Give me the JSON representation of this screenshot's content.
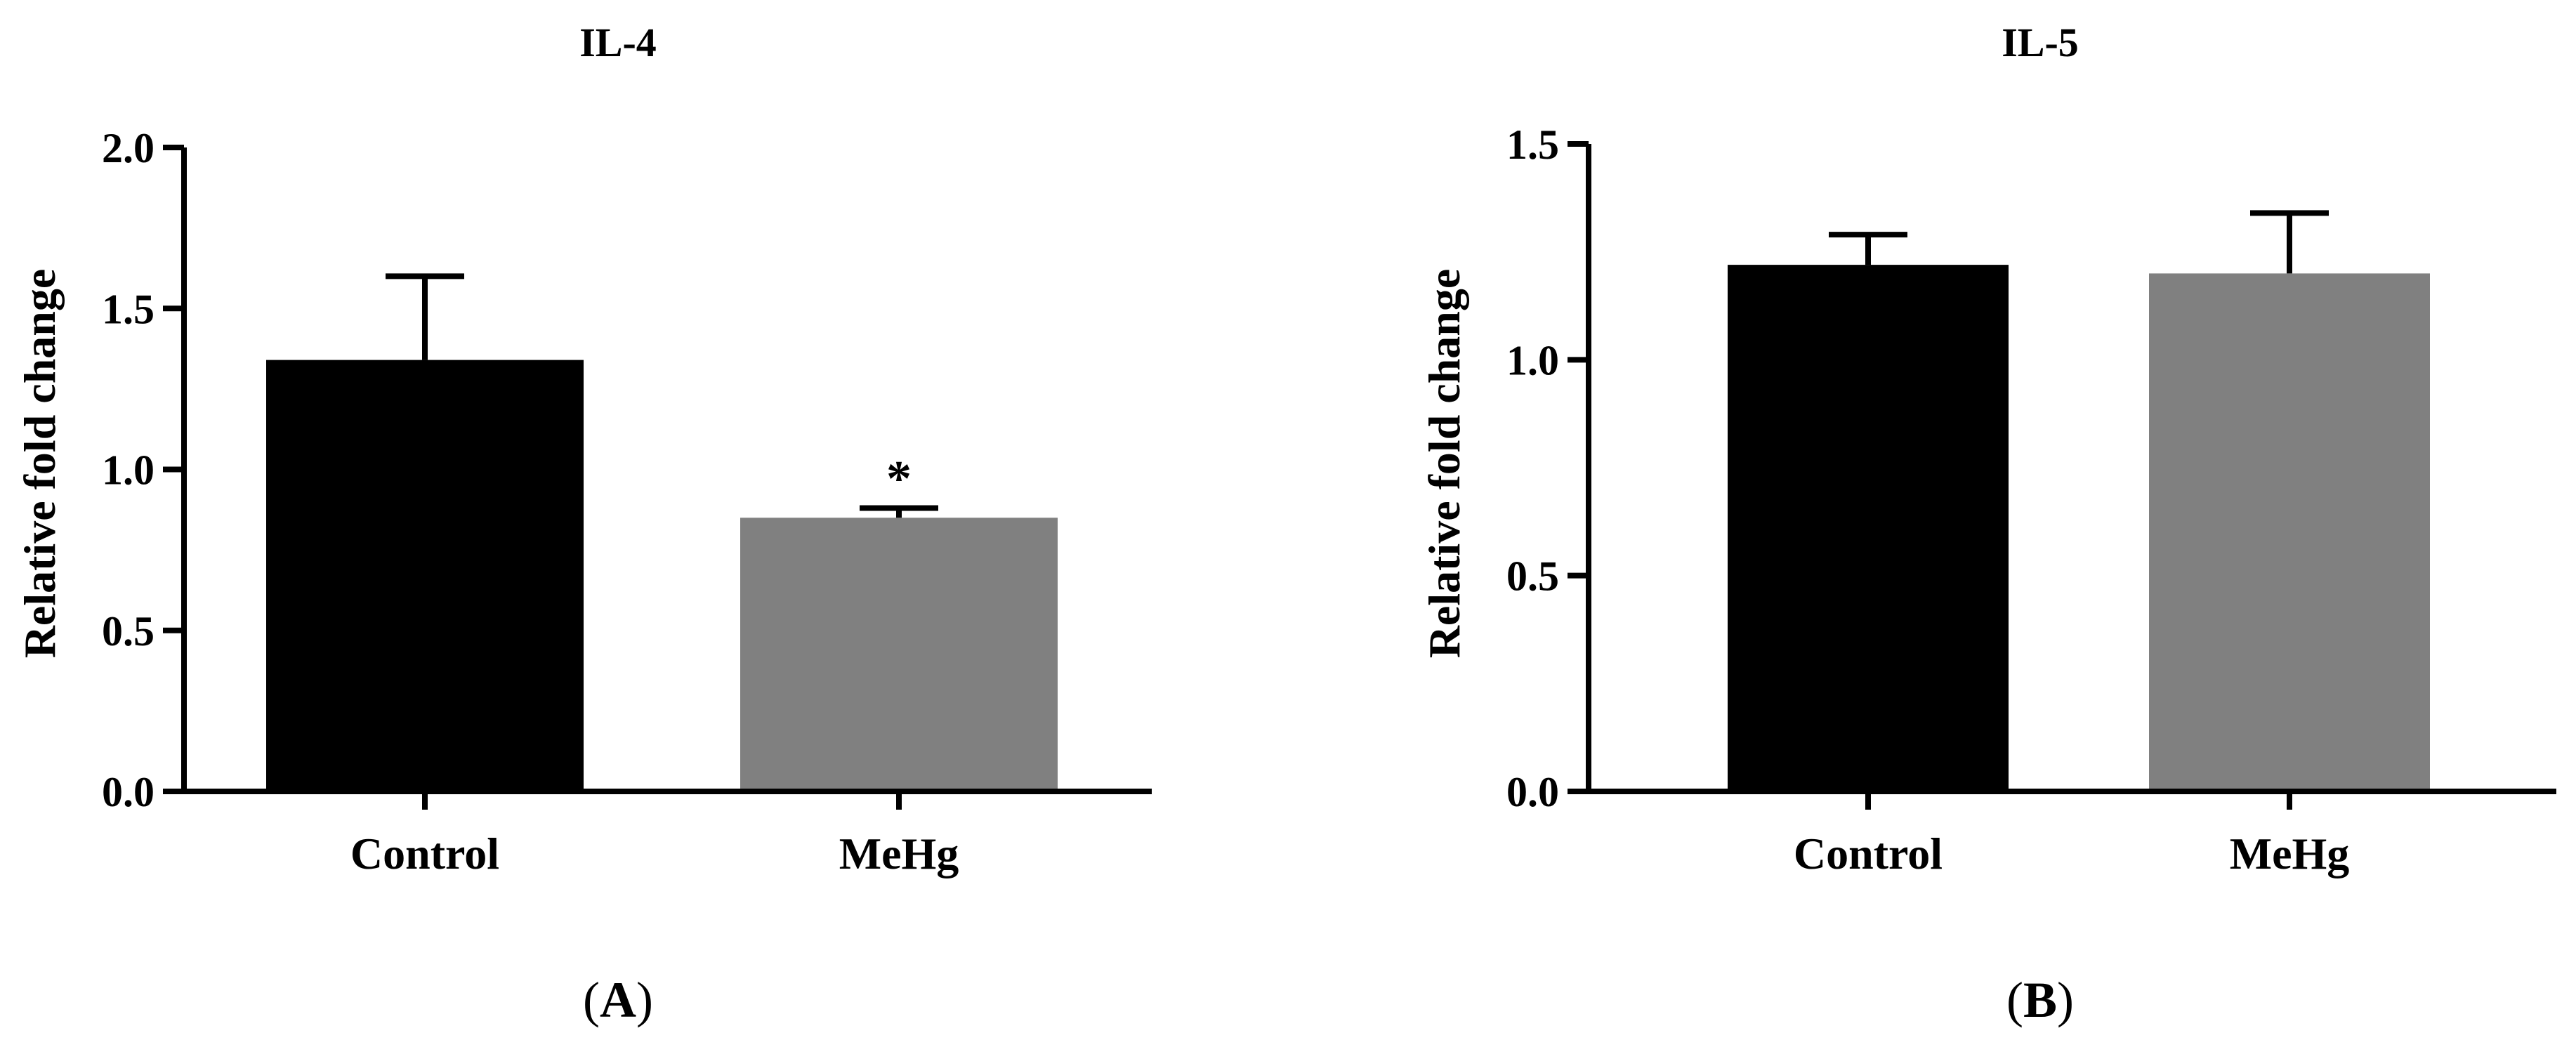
{
  "chart_data": [
    {
      "type": "bar",
      "panel_label": "(A)",
      "title": "IL-4",
      "ylabel": "Relative fold change",
      "xlabel": "",
      "categories": [
        "Control",
        "MeHg"
      ],
      "values": [
        1.34,
        0.85
      ],
      "error_upper": [
        0.26,
        0.03
      ],
      "bar_colors": [
        "#000000",
        "#808080"
      ],
      "significance": [
        "",
        "*"
      ],
      "ylim": [
        0,
        2.0
      ],
      "yticks": [
        0.0,
        0.5,
        1.0,
        1.5,
        2.0
      ],
      "ytick_labels": [
        "0.0",
        "0.5",
        "1.0",
        "1.5",
        "2.0"
      ],
      "grid": false,
      "legend": "none"
    },
    {
      "type": "bar",
      "panel_label": "(B)",
      "title": "IL-5",
      "ylabel": "Relative fold change",
      "xlabel": "",
      "categories": [
        "Control",
        "MeHg"
      ],
      "values": [
        1.22,
        1.2
      ],
      "error_upper": [
        0.07,
        0.14
      ],
      "bar_colors": [
        "#000000",
        "#808080"
      ],
      "significance": [
        "",
        ""
      ],
      "ylim": [
        0,
        1.5
      ],
      "yticks": [
        0.0,
        0.5,
        1.0,
        1.5
      ],
      "ytick_labels": [
        "0.0",
        "0.5",
        "1.0",
        "1.5"
      ],
      "grid": false,
      "legend": "none"
    }
  ]
}
